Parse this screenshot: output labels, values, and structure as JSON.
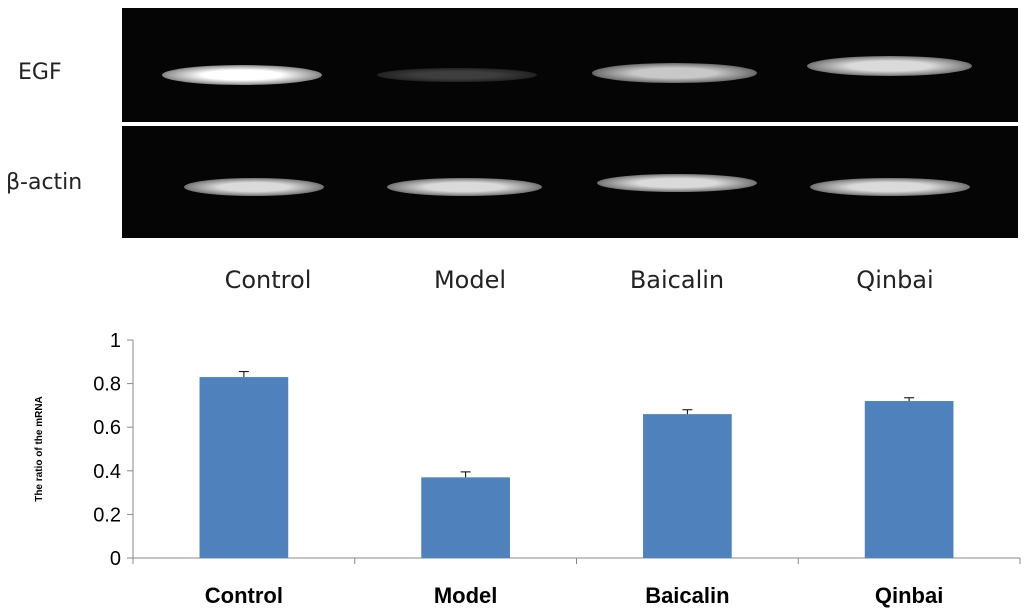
{
  "gel": {
    "rows": [
      {
        "label": "EGF"
      },
      {
        "label": "β-actin"
      }
    ],
    "lanes": [
      "Control",
      "Model",
      "Baicalin",
      "Qinbai"
    ],
    "band_intensity": {
      "EGF": [
        1.0,
        0.35,
        0.85,
        0.9
      ],
      "beta_actin": [
        0.9,
        0.9,
        0.9,
        0.9
      ]
    }
  },
  "chart_data": {
    "type": "bar",
    "categories": [
      "Control",
      "Model",
      "Baicalin",
      "Qinbai"
    ],
    "values": [
      0.83,
      0.37,
      0.66,
      0.72
    ],
    "errors": [
      0.025,
      0.025,
      0.02,
      0.015
    ],
    "title": "",
    "xlabel": "",
    "ylabel": "The ratio of the mRNA",
    "ylim": [
      0,
      1
    ],
    "yticks": [
      "0",
      "0.2",
      "0.4",
      "0.6",
      "0.8",
      "1"
    ],
    "bar_color": "#4f81bd",
    "grid": false
  }
}
